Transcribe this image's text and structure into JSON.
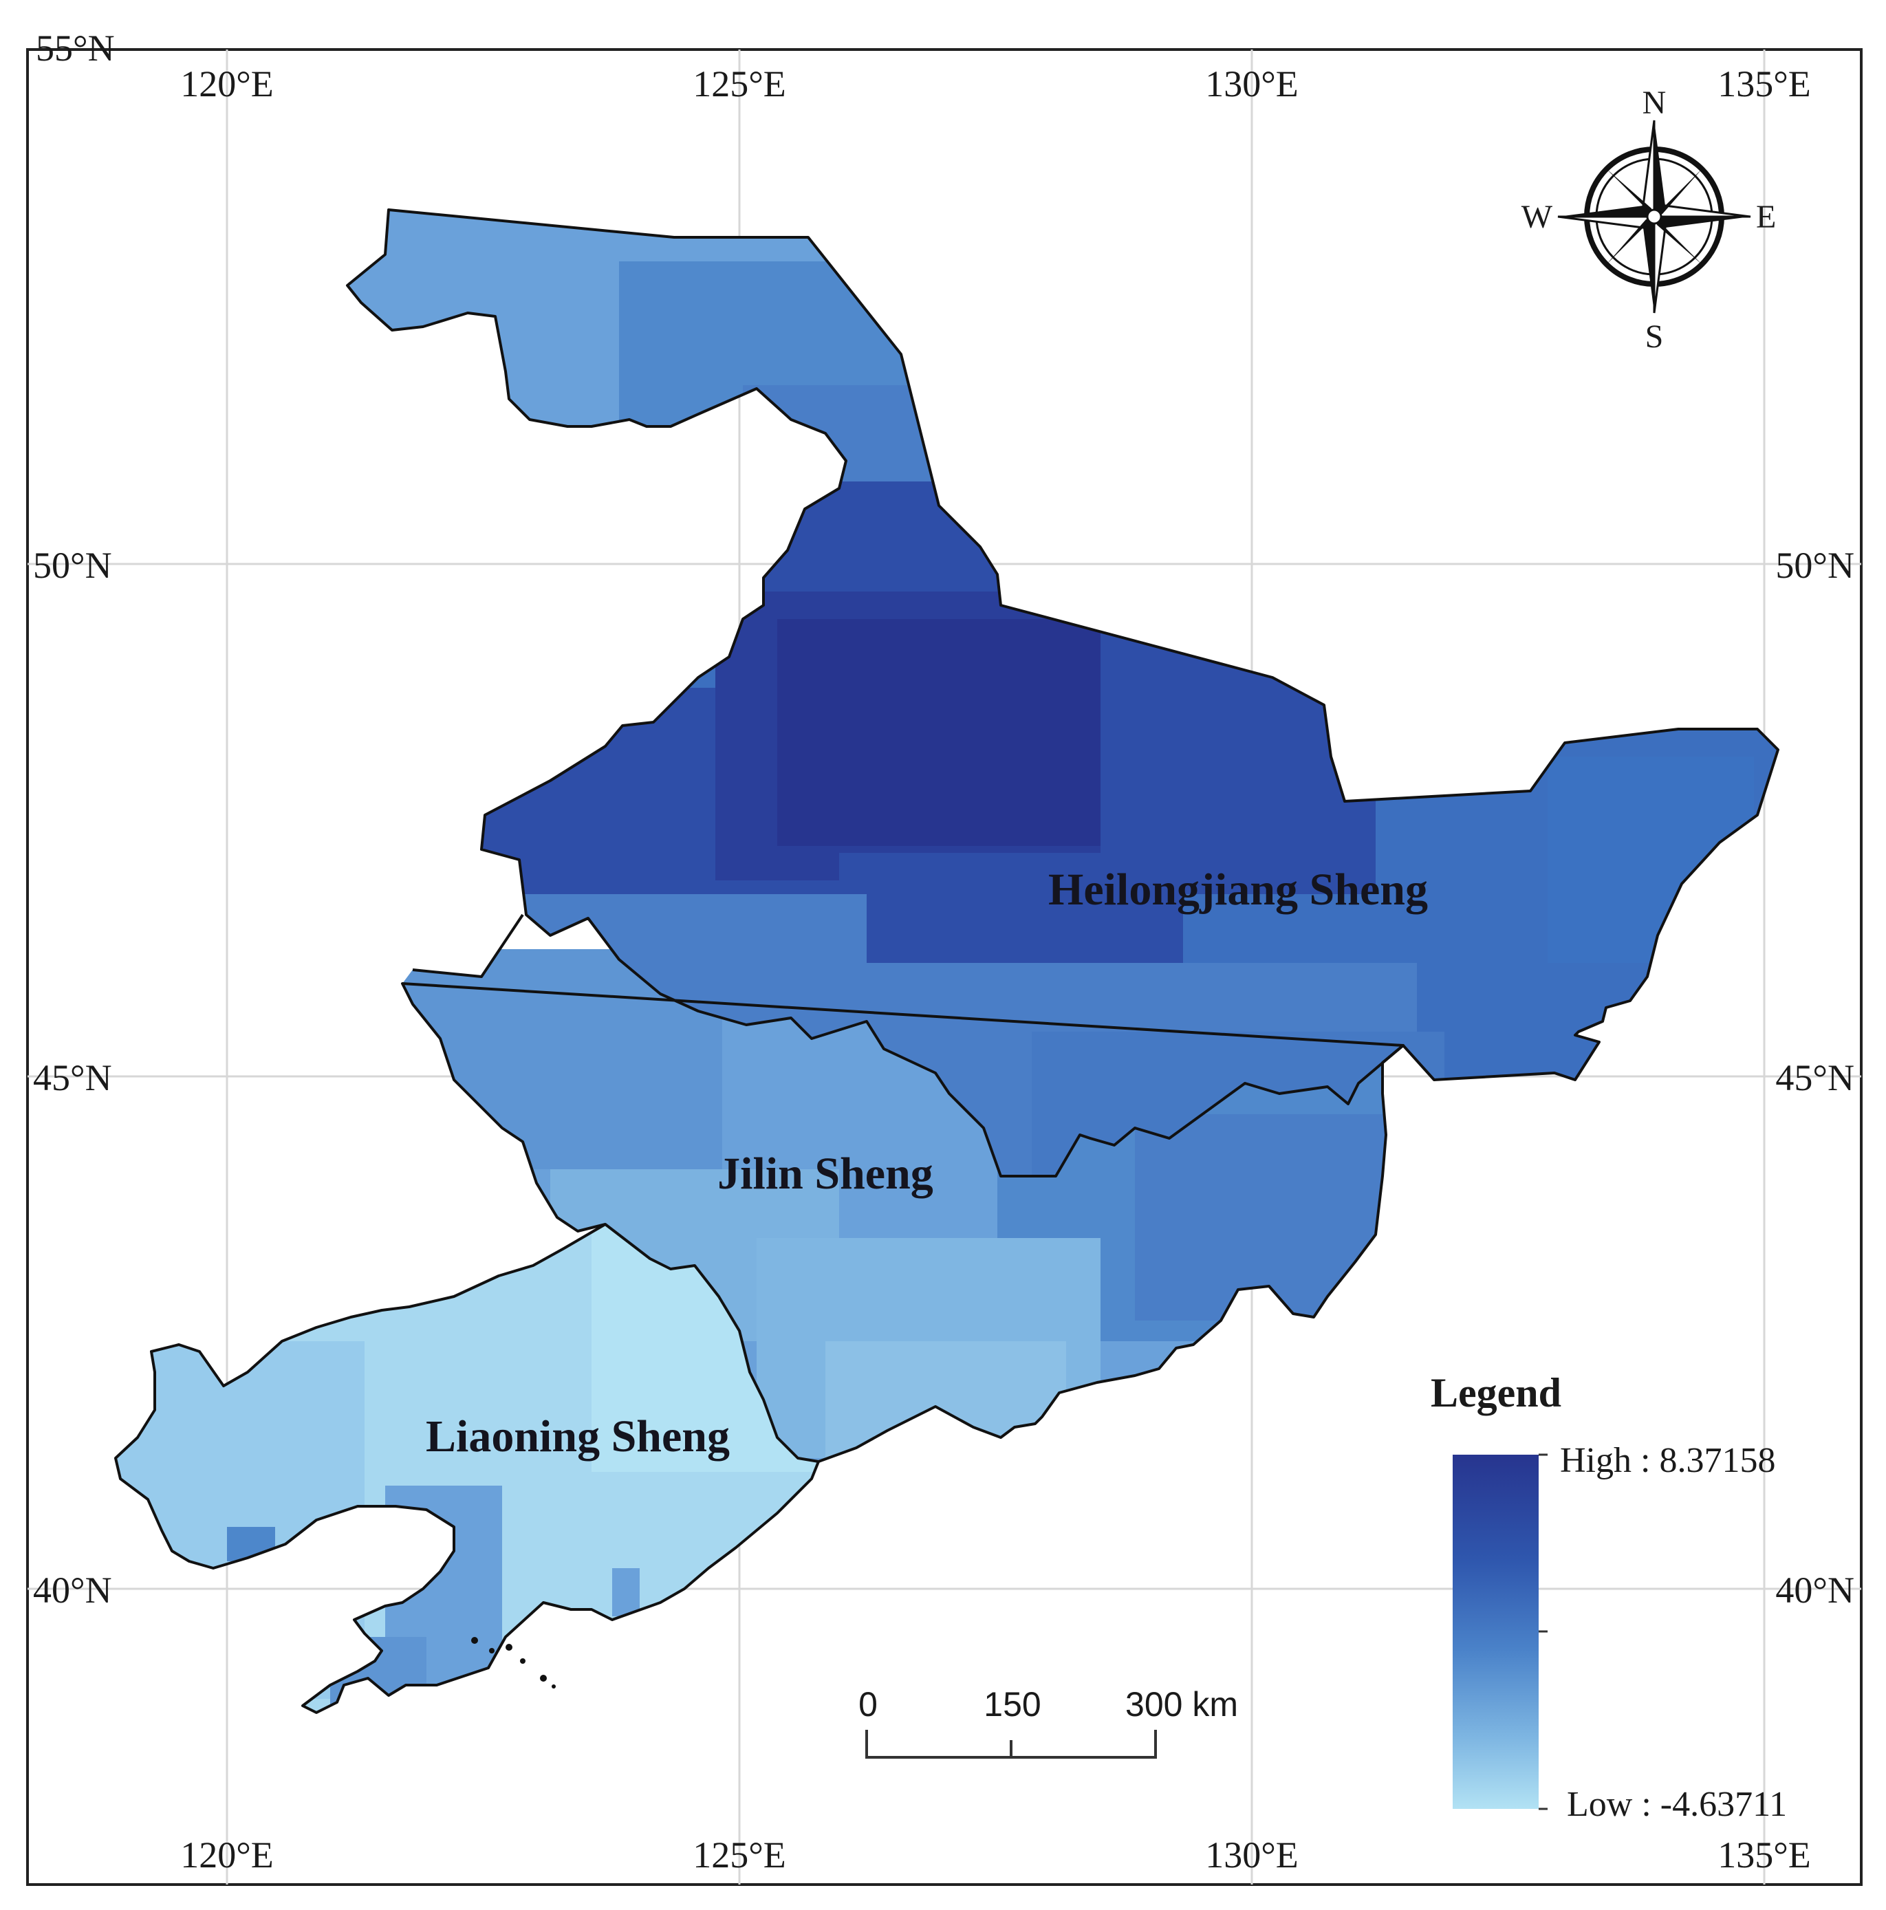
{
  "frame": {
    "corner_label": "55°N"
  },
  "longitude_labels": [
    "120°E",
    "125°E",
    "130°E",
    "135°E"
  ],
  "latitude_labels": [
    "50°N",
    "45°N",
    "40°N"
  ],
  "regions": {
    "heilongjiang": "Heilongjiang Sheng",
    "jilin": "Jilin Sheng",
    "liaoning": "Liaoning Sheng"
  },
  "compass": {
    "n": "N",
    "s": "S",
    "e": "E",
    "w": "W"
  },
  "scale_bar": {
    "labels": [
      "0",
      "150",
      "300 km"
    ]
  },
  "legend": {
    "title": "Legend",
    "high_label": "High : 8.37158",
    "low_label": "Low : -4.63711",
    "high_value": 8.37158,
    "low_value": -4.63711,
    "high_color": "#27358f",
    "low_color": "#b2e2f4"
  },
  "colors": {
    "level_darkest": "#27358f",
    "level_dark": "#2e4ea8",
    "level_mid_dark": "#3c6fbf",
    "level_mid": "#5089cc",
    "level_mid_light": "#6aa1da",
    "level_light": "#8cc0e6",
    "level_lightest": "#b2e2f4",
    "boundary": "#111111"
  }
}
